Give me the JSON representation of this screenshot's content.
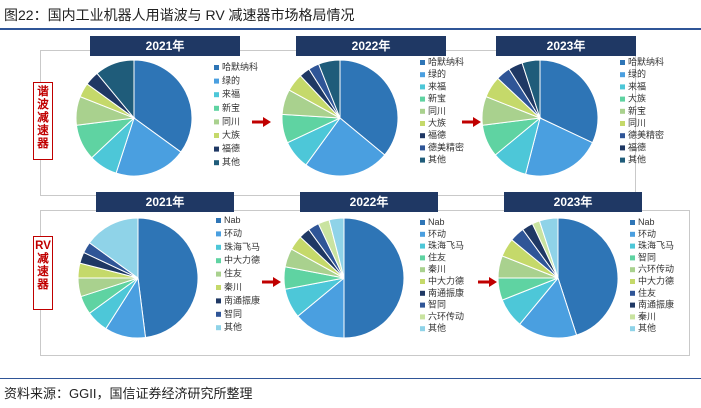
{
  "title": "图22：国内工业机器人用谐波与 RV 减速器市场格局情况",
  "source": "资料来源：GGII，国信证券经济研究所整理",
  "colors": {
    "title_rule": "#2f5597",
    "tab_bg": "#1f3864",
    "side_label": "#c00000",
    "arrow": "#c00000"
  },
  "rows": [
    {
      "side_label": "谐波减速器",
      "years": [
        "2021年",
        "2022年",
        "2023年"
      ]
    },
    {
      "side_label": "RV减速器",
      "years": [
        "2021年",
        "2022年",
        "2023年"
      ]
    }
  ],
  "chart_data": [
    {
      "type": "pie",
      "section": "谐波减速器",
      "year": "2021年",
      "labels": [
        "哈默纳科",
        "绿的",
        "来福",
        "新宝",
        "同川",
        "大族",
        "福德",
        "其他"
      ],
      "values": [
        35,
        20,
        8,
        10,
        8,
        4,
        4,
        11
      ],
      "colors": [
        "#2e75b6",
        "#4a9fe0",
        "#4dc7d8",
        "#5fd3a2",
        "#a9d18e",
        "#c5d96a",
        "#1f3864",
        "#1f5c7a"
      ]
    },
    {
      "type": "pie",
      "section": "谐波减速器",
      "year": "2022年",
      "labels": [
        "哈默纳科",
        "绿的",
        "来福",
        "新宝",
        "同川",
        "大族",
        "福德",
        "德美精密",
        "其他"
      ],
      "values": [
        36,
        24,
        8,
        8,
        7,
        5,
        3,
        3,
        6
      ],
      "colors": [
        "#2e75b6",
        "#4a9fe0",
        "#4dc7d8",
        "#5fd3a2",
        "#a9d18e",
        "#c5d96a",
        "#1f3864",
        "#2f5597",
        "#1f5c7a"
      ]
    },
    {
      "type": "pie",
      "section": "谐波减速器",
      "year": "2023年",
      "labels": [
        "哈默纳科",
        "绿的",
        "来福",
        "大族",
        "新宝",
        "同川",
        "德美精密",
        "福德",
        "其他"
      ],
      "values": [
        32,
        22,
        10,
        9,
        8,
        6,
        4,
        4,
        5
      ],
      "colors": [
        "#2e75b6",
        "#4a9fe0",
        "#4dc7d8",
        "#5fd3a2",
        "#a9d18e",
        "#c5d96a",
        "#2f5597",
        "#1f3864",
        "#1f5c7a"
      ]
    },
    {
      "type": "pie",
      "section": "RV减速器",
      "year": "2021年",
      "labels": [
        "Nab",
        "环动",
        "珠海飞马",
        "中大力德",
        "住友",
        "秦川",
        "南通振康",
        "智同",
        "其他"
      ],
      "values": [
        48,
        11,
        6,
        5,
        5,
        4,
        3,
        3,
        15
      ],
      "colors": [
        "#2e75b6",
        "#4a9fe0",
        "#4dc7d8",
        "#5fd3a2",
        "#a9d18e",
        "#c5d96a",
        "#1f3864",
        "#2f5597",
        "#8fd3e8"
      ]
    },
    {
      "type": "pie",
      "section": "RV减速器",
      "year": "2022年",
      "labels": [
        "Nab",
        "环动",
        "珠海飞马",
        "住友",
        "秦川",
        "中大力德",
        "南通振康",
        "智同",
        "六环传动",
        "其他"
      ],
      "values": [
        50,
        14,
        8,
        6,
        5,
        4,
        3,
        3,
        3,
        4
      ],
      "colors": [
        "#2e75b6",
        "#4a9fe0",
        "#4dc7d8",
        "#5fd3a2",
        "#a9d18e",
        "#c5d96a",
        "#1f3864",
        "#2f5597",
        "#c9e3a0",
        "#8fd3e8"
      ]
    },
    {
      "type": "pie",
      "section": "RV减速器",
      "year": "2023年",
      "labels": [
        "Nab",
        "环动",
        "珠海飞马",
        "智同",
        "六环传动",
        "中大力德",
        "住友",
        "南通振康",
        "秦川",
        "其他"
      ],
      "values": [
        45,
        16,
        8,
        6,
        6,
        5,
        4,
        3,
        2,
        5
      ],
      "colors": [
        "#2e75b6",
        "#4a9fe0",
        "#4dc7d8",
        "#5fd3a2",
        "#a9d18e",
        "#c5d96a",
        "#2f5597",
        "#1f3864",
        "#c9e3a0",
        "#8fd3e8"
      ]
    }
  ]
}
